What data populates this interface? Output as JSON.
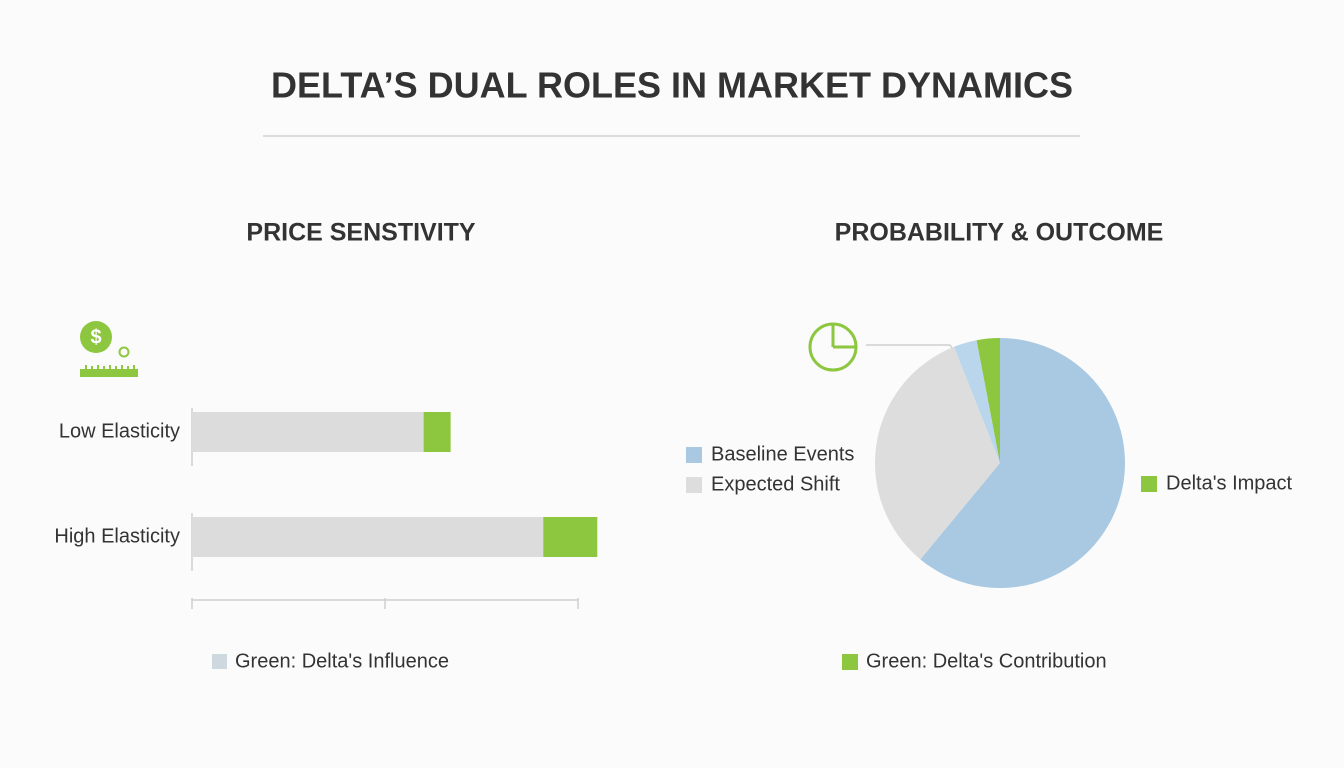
{
  "title": "DELTA’S DUAL ROLES IN MARKET DYNAMICS",
  "chart_data": [
    {
      "type": "stacked-hbar",
      "title": "PRICE SENSTIVITY",
      "icon_label": "$",
      "categories": [
        "Low Elasticity",
        "High Elasticity"
      ],
      "series": [
        {
          "color": "#dcdcdc",
          "values": [
            60,
            91
          ]
        },
        {
          "name": "Green: Delta's Influence",
          "color": "#8dc63f",
          "values": [
            7,
            14
          ]
        }
      ],
      "legend_swatch_color": "#cdd8df",
      "xlim": [
        0,
        100
      ],
      "xticks": [
        0,
        50,
        100
      ]
    },
    {
      "type": "pie",
      "title": "PROBABILITY & OUTCOME",
      "categories": [
        "Baseline Events",
        "Expected Shift",
        null,
        "Delta's Impact"
      ],
      "values": [
        61,
        33,
        3,
        3
      ],
      "colors": [
        "#a9c9e2",
        "#dddddd",
        "#b9d6ec",
        "#8dc63f"
      ],
      "caption": "Green: Delta's Contribution",
      "caption_color": "#8dc63f"
    }
  ]
}
